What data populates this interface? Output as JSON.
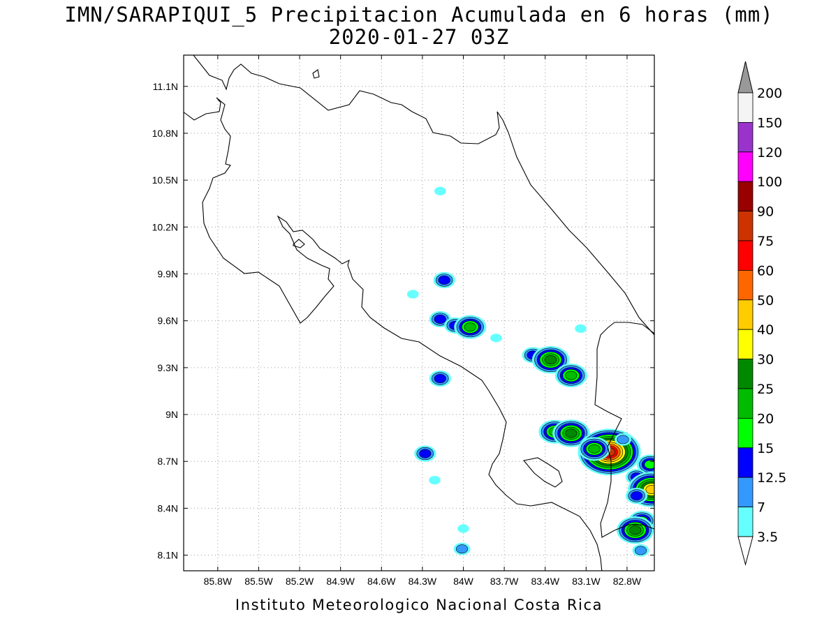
{
  "header": {
    "title": "IMN/SARAPIQUI_5 Precipitacion Acumulada en 6 horas (mm)",
    "subtitle": "2020-01-27 03Z"
  },
  "footer": {
    "credit": "Instituto Meteorologico Nacional Costa Rica"
  },
  "map": {
    "lon_range": [
      -86.05,
      -82.6
    ],
    "lat_range": [
      8.0,
      11.3
    ],
    "lon_ticks": [
      {
        "value": -85.8,
        "label": "85.8W"
      },
      {
        "value": -85.5,
        "label": "85.5W"
      },
      {
        "value": -85.2,
        "label": "85.2W"
      },
      {
        "value": -84.9,
        "label": "84.9W"
      },
      {
        "value": -84.6,
        "label": "84.6W"
      },
      {
        "value": -84.3,
        "label": "84.3W"
      },
      {
        "value": -84.0,
        "label": "84W"
      },
      {
        "value": -83.7,
        "label": "83.7W"
      },
      {
        "value": -83.4,
        "label": "83.4W"
      },
      {
        "value": -83.1,
        "label": "83.1W"
      },
      {
        "value": -82.8,
        "label": "82.8W"
      }
    ],
    "lat_ticks": [
      {
        "value": 11.1,
        "label": "11.1N"
      },
      {
        "value": 10.8,
        "label": "10.8N"
      },
      {
        "value": 10.5,
        "label": "10.5N"
      },
      {
        "value": 10.2,
        "label": "10.2N"
      },
      {
        "value": 9.9,
        "label": "9.9N"
      },
      {
        "value": 9.6,
        "label": "9.6N"
      },
      {
        "value": 9.3,
        "label": "9.3N"
      },
      {
        "value": 9.0,
        "label": "9N"
      },
      {
        "value": 8.7,
        "label": "8.7N"
      },
      {
        "value": 8.4,
        "label": "8.4N"
      },
      {
        "value": 8.1,
        "label": "8.1N"
      }
    ],
    "grid": true
  },
  "colorbar": {
    "levels": [
      "200",
      "150",
      "120",
      "100",
      "90",
      "75",
      "60",
      "50",
      "40",
      "30",
      "25",
      "20",
      "15",
      "12.5",
      "7",
      "3.5"
    ],
    "colors": [
      "#f4f4f4",
      "#9933cc",
      "#ff00ff",
      "#990000",
      "#cc3300",
      "#ff0000",
      "#ff6600",
      "#ffcc00",
      "#ffff00",
      "#008800",
      "#00bb00",
      "#00ff00",
      "#0000ff",
      "#3399ff",
      "#66ffff"
    ],
    "top_arrow_color": "#999999",
    "bottom_arrow_color": "#ffffff"
  },
  "precip_cells": [
    {
      "lon": -84.17,
      "lat": 10.43,
      "mm": 3.5
    },
    {
      "lon": -84.14,
      "lat": 9.86,
      "mm": 12.5
    },
    {
      "lon": -84.17,
      "lat": 9.61,
      "mm": 12.5
    },
    {
      "lon": -84.06,
      "lat": 9.57,
      "mm": 12.5
    },
    {
      "lon": -83.95,
      "lat": 9.56,
      "mm": 20
    },
    {
      "lon": -83.49,
      "lat": 9.38,
      "mm": 12.5
    },
    {
      "lon": -83.36,
      "lat": 9.35,
      "mm": 25
    },
    {
      "lon": -83.21,
      "lat": 9.25,
      "mm": 20
    },
    {
      "lon": -84.17,
      "lat": 9.23,
      "mm": 12.5
    },
    {
      "lon": -83.33,
      "lat": 8.89,
      "mm": 20
    },
    {
      "lon": -83.21,
      "lat": 8.88,
      "mm": 25
    },
    {
      "lon": -82.93,
      "lat": 8.76,
      "mm": 75
    },
    {
      "lon": -83.04,
      "lat": 8.78,
      "mm": 20
    },
    {
      "lon": -84.28,
      "lat": 8.75,
      "mm": 12.5
    },
    {
      "lon": -82.63,
      "lat": 8.68,
      "mm": 15
    },
    {
      "lon": -82.73,
      "lat": 8.6,
      "mm": 12.5
    },
    {
      "lon": -82.62,
      "lat": 8.52,
      "mm": 40
    },
    {
      "lon": -82.73,
      "lat": 8.48,
      "mm": 12.5
    },
    {
      "lon": -82.69,
      "lat": 8.32,
      "mm": 15
    },
    {
      "lon": -82.74,
      "lat": 8.26,
      "mm": 25
    },
    {
      "lon": -84.21,
      "lat": 8.58,
      "mm": 3.5
    },
    {
      "lon": -84.0,
      "lat": 8.27,
      "mm": 3.5
    },
    {
      "lon": -84.01,
      "lat": 8.14,
      "mm": 7
    },
    {
      "lon": -82.7,
      "lat": 8.13,
      "mm": 7
    },
    {
      "lon": -82.83,
      "lat": 8.84,
      "mm": 7
    },
    {
      "lon": -83.14,
      "lat": 9.55,
      "mm": 3.5
    },
    {
      "lon": -83.76,
      "lat": 9.49,
      "mm": 3.5
    },
    {
      "lon": -84.37,
      "lat": 9.77,
      "mm": 3.5
    }
  ]
}
